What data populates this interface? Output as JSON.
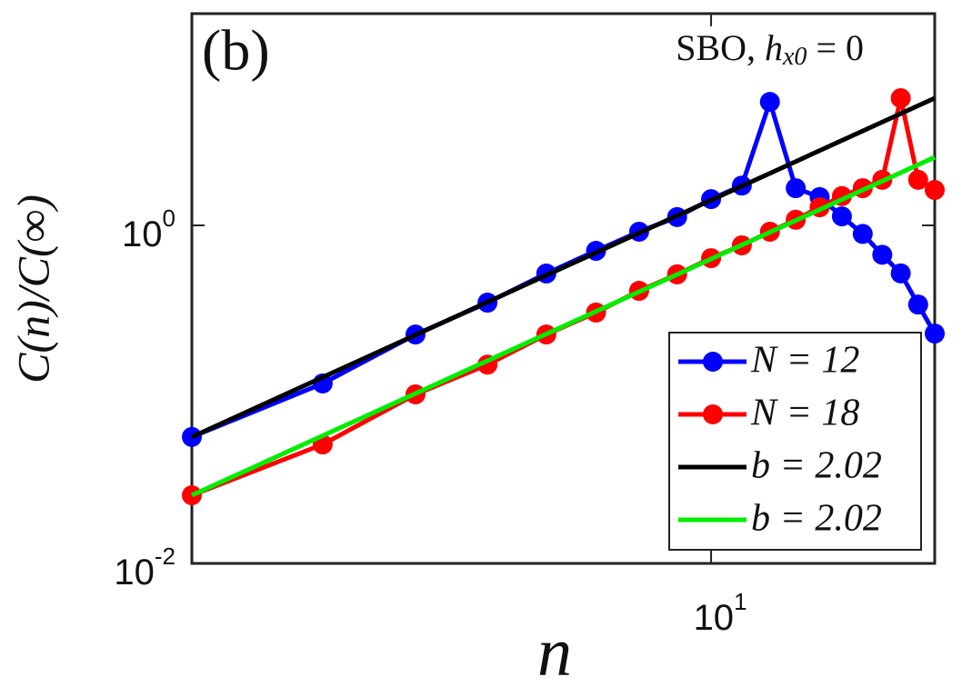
{
  "chart_data": {
    "type": "line",
    "panel_label": "(b)",
    "annotation": {
      "text": "SBO,",
      "var": "h",
      "sub": "x0",
      "rhs": "= 0"
    },
    "xlabel": "n",
    "ylabel": "C(n)/C(∞)",
    "log_x": true,
    "log_y": true,
    "xlim": [
      2,
      20
    ],
    "ylim": [
      0.01,
      17.9
    ],
    "xticks": [
      {
        "value": 10,
        "label": "10",
        "exponent": "1"
      }
    ],
    "yticks": [
      {
        "value": 0.01,
        "label": "10",
        "exponent": "-2"
      },
      {
        "value": 1,
        "label": "10",
        "exponent": "0"
      }
    ],
    "legend_position": "lower right",
    "series": [
      {
        "name": "N = 12",
        "color": "#0000ff",
        "marker": true,
        "x": [
          2,
          3,
          4,
          5,
          6,
          7,
          8,
          9,
          10,
          11,
          12,
          13,
          14,
          15,
          16,
          17,
          18,
          19,
          20
        ],
        "values": [
          0.056,
          0.116,
          0.226,
          0.349,
          0.519,
          0.707,
          0.917,
          1.12,
          1.43,
          1.72,
          5.38,
          1.66,
          1.47,
          1.13,
          0.89,
          0.67,
          0.52,
          0.34,
          0.229
        ]
      },
      {
        "name": "N = 18",
        "color": "#ff0000",
        "marker": true,
        "x": [
          2,
          3,
          4,
          5,
          6,
          7,
          8,
          9,
          10,
          11,
          12,
          13,
          14,
          15,
          16,
          17,
          18,
          19,
          20
        ],
        "values": [
          0.0253,
          0.0506,
          0.1,
          0.15,
          0.226,
          0.305,
          0.41,
          0.513,
          0.64,
          0.762,
          0.917,
          1.08,
          1.28,
          1.49,
          1.66,
          1.86,
          5.66,
          1.86,
          1.62
        ]
      },
      {
        "name": "b = 2.02",
        "color": "#000000",
        "marker": false,
        "x": [
          2,
          20
        ],
        "values": [
          0.056,
          5.66
        ]
      },
      {
        "name": "b = 2.02",
        "color": "#00ee00",
        "marker": false,
        "x": [
          2,
          20
        ],
        "values": [
          0.0253,
          2.53
        ]
      }
    ]
  }
}
